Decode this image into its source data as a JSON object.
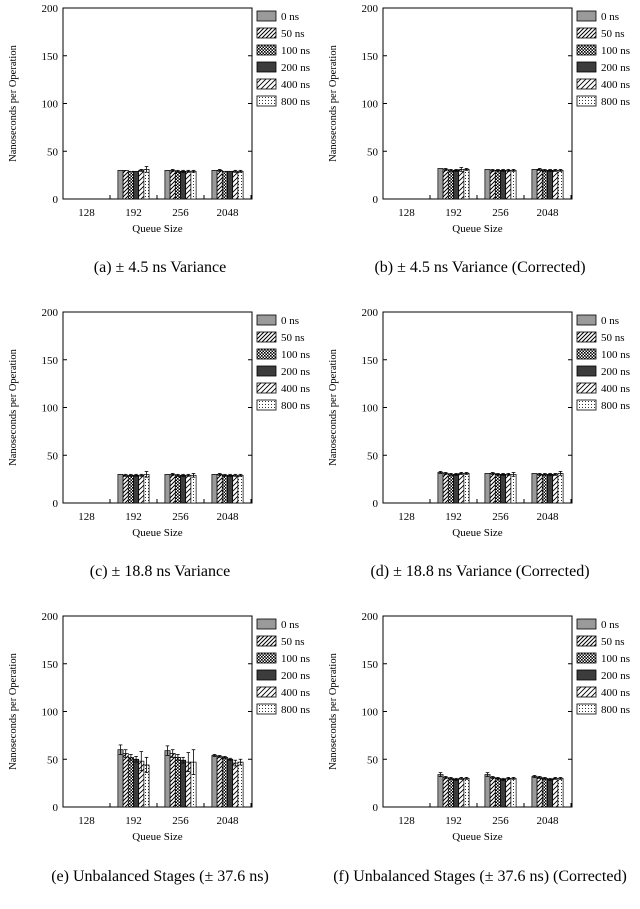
{
  "legend": [
    "0 ns",
    "50 ns",
    "100 ns",
    "200 ns",
    "400 ns",
    "800 ns"
  ],
  "captions": [
    "(a) ± 4.5 ns Variance",
    "(b) ± 4.5 ns Variance (Corrected)",
    "(c) ± 18.8 ns Variance",
    "(d) ± 18.8 ns Variance (Corrected)",
    "(e) Unbalanced Stages (± 37.6 ns)",
    "(f) Unbalanced Stages (± 37.6 ns) (Corrected)"
  ],
  "chart_data": [
    {
      "type": "bar",
      "xlabel": "Queue Size",
      "ylabel": "Nanoseconds per Operation",
      "ylim": [
        0,
        200
      ],
      "yticks": [
        0,
        50,
        100,
        150,
        200
      ],
      "categories": [
        "128",
        "192",
        "256",
        "2048"
      ],
      "legend": "right",
      "series": [
        {
          "name": "0 ns",
          "values": [
            0,
            30,
            30,
            30
          ],
          "errors": [
            0,
            0,
            0,
            0
          ]
        },
        {
          "name": "50 ns",
          "values": [
            0,
            30,
            30,
            30
          ],
          "errors": [
            0,
            0,
            1,
            1
          ]
        },
        {
          "name": "100 ns",
          "values": [
            0,
            29,
            29,
            29
          ],
          "errors": [
            0,
            0,
            1,
            0
          ]
        },
        {
          "name": "200 ns",
          "values": [
            0,
            29,
            29,
            29
          ],
          "errors": [
            0,
            0,
            1,
            0
          ]
        },
        {
          "name": "400 ns",
          "values": [
            0,
            30,
            29,
            29
          ],
          "errors": [
            0,
            1,
            1,
            1
          ]
        },
        {
          "name": "800 ns",
          "values": [
            0,
            31,
            29,
            29
          ],
          "errors": [
            0,
            3,
            1,
            1
          ]
        }
      ]
    },
    {
      "type": "bar",
      "xlabel": "Queue Size",
      "ylabel": "Nanoseconds per Operation",
      "ylim": [
        0,
        200
      ],
      "yticks": [
        0,
        50,
        100,
        150,
        200
      ],
      "categories": [
        "128",
        "192",
        "256",
        "2048"
      ],
      "legend": "right",
      "series": [
        {
          "name": "0 ns",
          "values": [
            0,
            32,
            31,
            31
          ],
          "errors": [
            0,
            0,
            0,
            0
          ]
        },
        {
          "name": "50 ns",
          "values": [
            0,
            31,
            30,
            31
          ],
          "errors": [
            0,
            1,
            1,
            1
          ]
        },
        {
          "name": "100 ns",
          "values": [
            0,
            30,
            30,
            30
          ],
          "errors": [
            0,
            1,
            1,
            1
          ]
        },
        {
          "name": "200 ns",
          "values": [
            0,
            30,
            30,
            30
          ],
          "errors": [
            0,
            1,
            1,
            1
          ]
        },
        {
          "name": "400 ns",
          "values": [
            0,
            31,
            30,
            30
          ],
          "errors": [
            0,
            2,
            1,
            1
          ]
        },
        {
          "name": "800 ns",
          "values": [
            0,
            31,
            30,
            30
          ],
          "errors": [
            0,
            1,
            1,
            1
          ]
        }
      ]
    },
    {
      "type": "bar",
      "xlabel": "Queue Size",
      "ylabel": "Nanoseconds per Operation",
      "ylim": [
        0,
        200
      ],
      "yticks": [
        0,
        50,
        100,
        150,
        200
      ],
      "categories": [
        "128",
        "192",
        "256",
        "2048"
      ],
      "legend": "right",
      "series": [
        {
          "name": "0 ns",
          "values": [
            0,
            30,
            30,
            30
          ],
          "errors": [
            0,
            0,
            0,
            0
          ]
        },
        {
          "name": "50 ns",
          "values": [
            0,
            29,
            30,
            30
          ],
          "errors": [
            0,
            1,
            1,
            1
          ]
        },
        {
          "name": "100 ns",
          "values": [
            0,
            29,
            29,
            29
          ],
          "errors": [
            0,
            1,
            1,
            1
          ]
        },
        {
          "name": "200 ns",
          "values": [
            0,
            29,
            29,
            29
          ],
          "errors": [
            0,
            1,
            1,
            1
          ]
        },
        {
          "name": "400 ns",
          "values": [
            0,
            29,
            29,
            29
          ],
          "errors": [
            0,
            1,
            1,
            1
          ]
        },
        {
          "name": "800 ns",
          "values": [
            0,
            30,
            29,
            29
          ],
          "errors": [
            0,
            3,
            2,
            1
          ]
        }
      ]
    },
    {
      "type": "bar",
      "xlabel": "Queue Size",
      "ylabel": "Nanoseconds per Operation",
      "ylim": [
        0,
        200
      ],
      "yticks": [
        0,
        50,
        100,
        150,
        200
      ],
      "categories": [
        "128",
        "192",
        "256",
        "2048"
      ],
      "legend": "right",
      "series": [
        {
          "name": "0 ns",
          "values": [
            0,
            32,
            31,
            31
          ],
          "errors": [
            0,
            1,
            0,
            0
          ]
        },
        {
          "name": "50 ns",
          "values": [
            0,
            31,
            31,
            30
          ],
          "errors": [
            0,
            1,
            1,
            1
          ]
        },
        {
          "name": "100 ns",
          "values": [
            0,
            30,
            30,
            30
          ],
          "errors": [
            0,
            1,
            1,
            1
          ]
        },
        {
          "name": "200 ns",
          "values": [
            0,
            30,
            30,
            30
          ],
          "errors": [
            0,
            1,
            1,
            1
          ]
        },
        {
          "name": "400 ns",
          "values": [
            0,
            31,
            30,
            30
          ],
          "errors": [
            0,
            1,
            1,
            1
          ]
        },
        {
          "name": "800 ns",
          "values": [
            0,
            31,
            30,
            31
          ],
          "errors": [
            0,
            1,
            2,
            2
          ]
        }
      ]
    },
    {
      "type": "bar",
      "xlabel": "Queue Size",
      "ylabel": "Nanoseconds per Operation",
      "ylim": [
        0,
        200
      ],
      "yticks": [
        0,
        50,
        100,
        150,
        200
      ],
      "categories": [
        "128",
        "192",
        "256",
        "2048"
      ],
      "legend": "right",
      "series": [
        {
          "name": "0 ns",
          "values": [
            0,
            60,
            59,
            54
          ],
          "errors": [
            0,
            5,
            5,
            1
          ]
        },
        {
          "name": "50 ns",
          "values": [
            0,
            56,
            56,
            53
          ],
          "errors": [
            0,
            4,
            4,
            1
          ]
        },
        {
          "name": "100 ns",
          "values": [
            0,
            52,
            52,
            52
          ],
          "errors": [
            0,
            3,
            3,
            1
          ]
        },
        {
          "name": "200 ns",
          "values": [
            0,
            50,
            49,
            50
          ],
          "errors": [
            0,
            3,
            3,
            1
          ]
        },
        {
          "name": "400 ns",
          "values": [
            0,
            48,
            47,
            46
          ],
          "errors": [
            0,
            10,
            10,
            3
          ]
        },
        {
          "name": "800 ns",
          "values": [
            0,
            44,
            47,
            47
          ],
          "errors": [
            0,
            8,
            13,
            3
          ]
        }
      ]
    },
    {
      "type": "bar",
      "xlabel": "Queue Size",
      "ylabel": "Nanoseconds per Operation",
      "ylim": [
        0,
        200
      ],
      "yticks": [
        0,
        50,
        100,
        150,
        200
      ],
      "categories": [
        "128",
        "192",
        "256",
        "2048"
      ],
      "legend": "right",
      "series": [
        {
          "name": "0 ns",
          "values": [
            0,
            34,
            34,
            32
          ],
          "errors": [
            0,
            2,
            2,
            1
          ]
        },
        {
          "name": "50 ns",
          "values": [
            0,
            31,
            31,
            31
          ],
          "errors": [
            0,
            1,
            1,
            1
          ]
        },
        {
          "name": "100 ns",
          "values": [
            0,
            30,
            30,
            30
          ],
          "errors": [
            0,
            1,
            1,
            1
          ]
        },
        {
          "name": "200 ns",
          "values": [
            0,
            29,
            29,
            29
          ],
          "errors": [
            0,
            1,
            1,
            1
          ]
        },
        {
          "name": "400 ns",
          "values": [
            0,
            30,
            30,
            30
          ],
          "errors": [
            0,
            1,
            1,
            1
          ]
        },
        {
          "name": "800 ns",
          "values": [
            0,
            30,
            30,
            30
          ],
          "errors": [
            0,
            1,
            1,
            1
          ]
        }
      ]
    }
  ]
}
